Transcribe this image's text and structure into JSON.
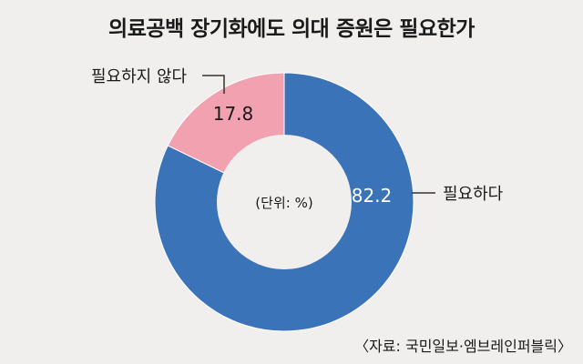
{
  "chart_data": {
    "type": "pie",
    "title": "의료공백 장기화에도 의대 증원은 필요한가",
    "center_label": "(단위: %)",
    "source": "〈자료: 국민일보·엠브레인퍼블릭〉",
    "slices": [
      {
        "label": "필요하다",
        "value": 82.2,
        "value_label": "82.2",
        "color": "#3b73b9"
      },
      {
        "label": "필요하지 않다",
        "value": 17.8,
        "value_label": "17.8",
        "color": "#f2a1b0"
      }
    ]
  }
}
